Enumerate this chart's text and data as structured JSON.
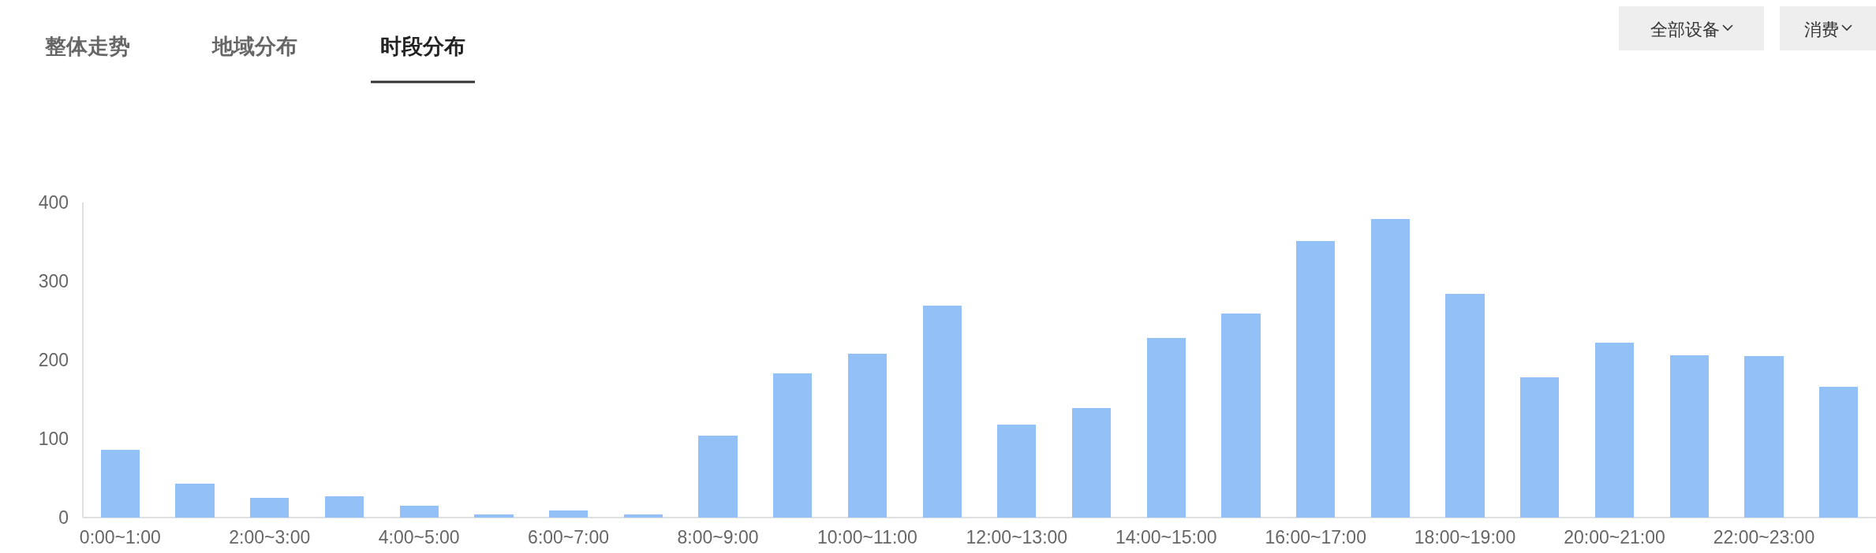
{
  "chart_data": {
    "type": "bar",
    "categories": [
      "0:00~1:00",
      null,
      "2:00~3:00",
      null,
      "4:00~5:00",
      null,
      "6:00~7:00",
      null,
      "8:00~9:00",
      null,
      "10:00~11:00",
      null,
      "12:00~13:00",
      null,
      "14:00~15:00",
      null,
      "16:00~17:00",
      null,
      "18:00~19:00",
      null,
      "20:00~21:00",
      null,
      "22:00~23:00",
      null
    ],
    "values": [
      86,
      43,
      25,
      27,
      15,
      4,
      9,
      4,
      104,
      183,
      208,
      269,
      118,
      139,
      228,
      259,
      351,
      379,
      284,
      178,
      222,
      206,
      205,
      166
    ],
    "color": "#93c1f7",
    "ylim": [
      0,
      400
    ],
    "yticks": [
      0,
      100,
      200,
      300,
      400
    ],
    "annotations": [
      "整体走势",
      "地域分布",
      "时段分布",
      "全部设备",
      "消费"
    ]
  }
}
